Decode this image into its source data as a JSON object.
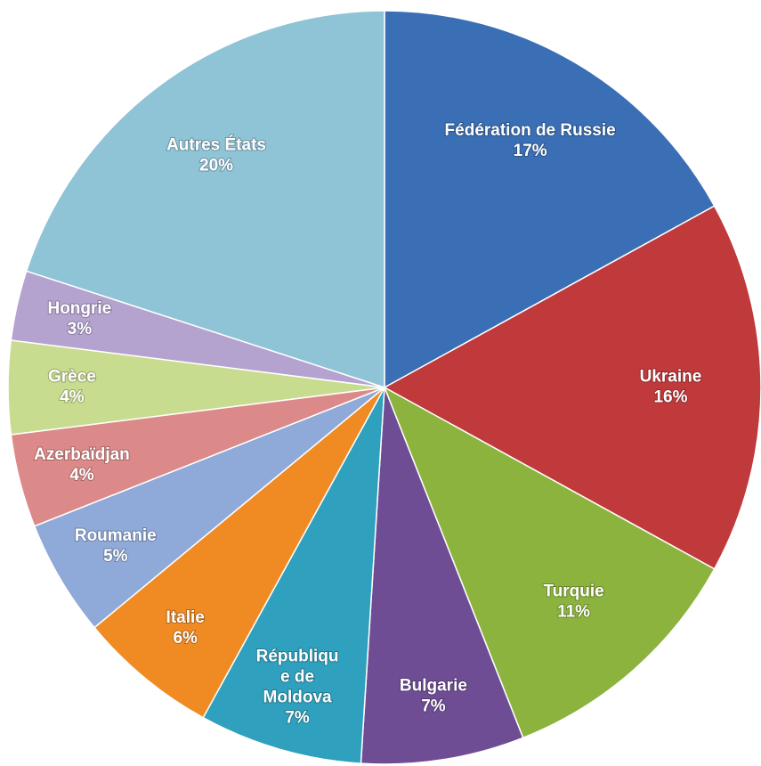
{
  "chart_data": {
    "type": "pie",
    "categories": [
      "Fédération de Russie",
      "Ukraine",
      "Turquie",
      "Bulgarie",
      "République de Moldova",
      "Italie",
      "Roumanie",
      "Azerbaïdjan",
      "Grèce",
      "Hongrie",
      "Autres États"
    ],
    "values": [
      17,
      16,
      11,
      7,
      7,
      6,
      5,
      4,
      4,
      3,
      20
    ],
    "value_labels": [
      "17%",
      "16%",
      "11%",
      "7%",
      "7%",
      "6%",
      "5%",
      "4%",
      "4%",
      "3%",
      "20%"
    ],
    "colors": [
      "#3a6fb5",
      "#c0393b",
      "#8cb33e",
      "#6e4d95",
      "#2fa0bd",
      "#f08a23",
      "#8faad8",
      "#dc8a89",
      "#c7dc8f",
      "#b5a3cf",
      "#8fc3d6"
    ]
  }
}
